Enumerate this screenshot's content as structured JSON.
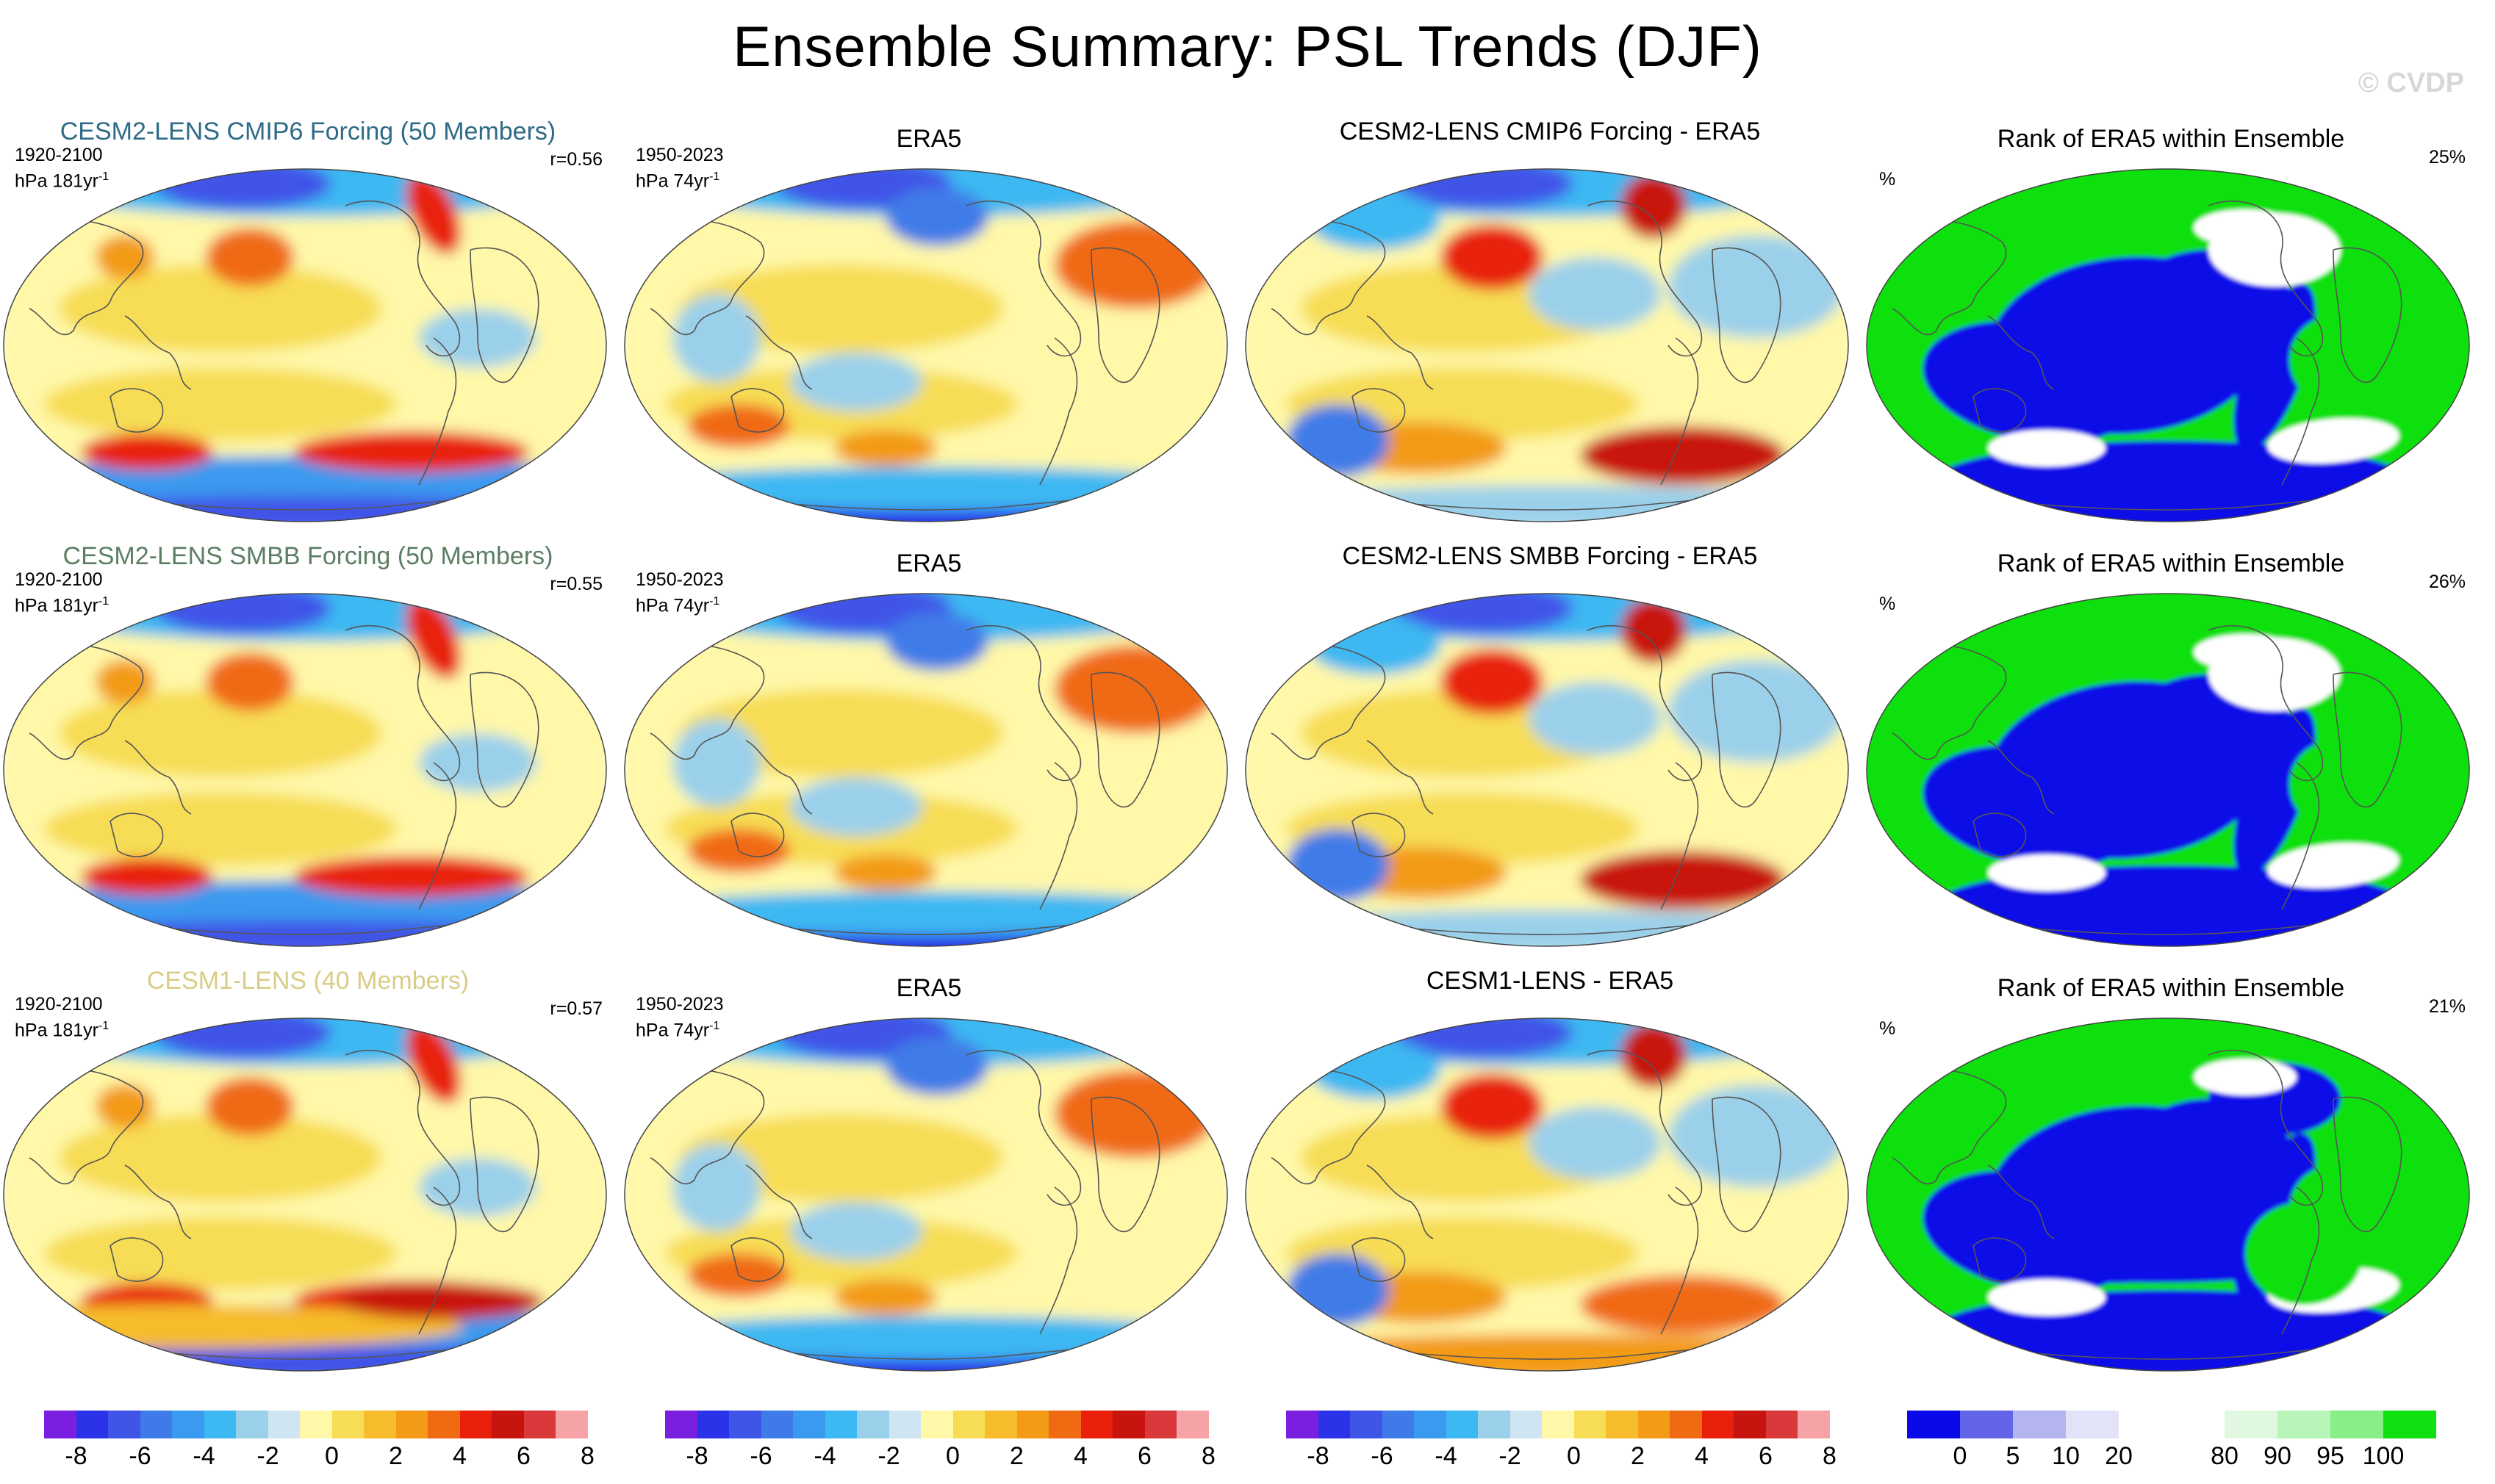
{
  "title": "Ensemble Summary: PSL Trends (DJF)",
  "watermark": "© CVDP",
  "rows": [
    {
      "model_title": "CESM2-LENS CMIP6 Forcing (50 Members)",
      "model_title_color": "#2e6b86",
      "model_period": "1920-2100",
      "model_units": "hPa 181yr",
      "model_corr": "r=0.56",
      "obs_title": "ERA5",
      "obs_period": "1950-2023",
      "obs_units": "hPa 74yr",
      "diff_title": "CESM2-LENS CMIP6 Forcing - ERA5",
      "rank_title": "Rank of ERA5 within Ensemble",
      "rank_unit": "%",
      "rank_pct": "25%"
    },
    {
      "model_title": "CESM2-LENS SMBB Forcing (50 Members)",
      "model_title_color": "#5c7e64",
      "model_period": "1920-2100",
      "model_units": "hPa 181yr",
      "model_corr": "r=0.55",
      "obs_title": "ERA5",
      "obs_period": "1950-2023",
      "obs_units": "hPa 74yr",
      "diff_title": "CESM2-LENS SMBB Forcing - ERA5",
      "rank_title": "Rank of ERA5 within Ensemble",
      "rank_unit": "%",
      "rank_pct": "26%"
    },
    {
      "model_title": "CESM1-LENS (40 Members)",
      "model_title_color": "#d9cc86",
      "model_period": "1920-2100",
      "model_units": "hPa 181yr",
      "model_corr": "r=0.57",
      "obs_title": "ERA5",
      "obs_period": "1950-2023",
      "obs_units": "hPa 74yr",
      "diff_title": "CESM1-LENS - ERA5",
      "rank_title": "Rank of ERA5 within Ensemble",
      "rank_unit": "%",
      "rank_pct": "21%"
    }
  ],
  "trend_colorbar": {
    "colors": [
      "#7a1fe0",
      "#2b33e8",
      "#3f55e8",
      "#3f7be8",
      "#3a9aef",
      "#3cb8f2",
      "#9bd0ea",
      "#cfe5f2",
      "#fff8a8",
      "#f7dd55",
      "#f6bc2c",
      "#f39a17",
      "#f06a12",
      "#e8200c",
      "#c8140e",
      "#d9393a",
      "#f5a3a6"
    ],
    "labels": [
      "-8",
      "-6",
      "-4",
      "-2",
      "0",
      "2",
      "4",
      "6",
      "8"
    ]
  },
  "rank_colorbar": {
    "colors": [
      "#0a0ae8",
      "#6464e8",
      "#b4b4f0",
      "#e2e2f8",
      "#ffffff",
      "#ffffff",
      "#e0f8e0",
      "#b8f5b8",
      "#88ee88",
      "#10e010"
    ],
    "labels": [
      "0",
      "5",
      "10",
      "20",
      "80",
      "90",
      "95",
      "100"
    ]
  }
}
